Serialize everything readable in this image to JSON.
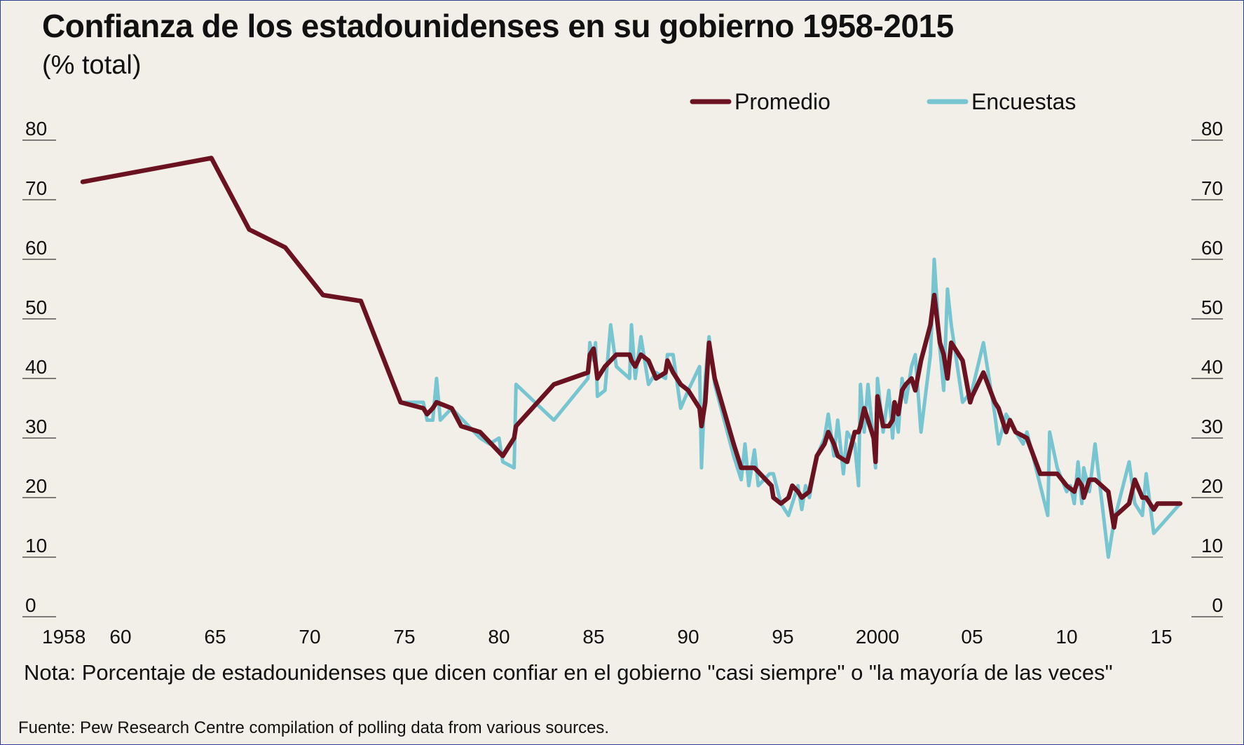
{
  "title": "Confianza de los estadounidenses en su gobierno 1958-2015",
  "subtitle": "(% total)",
  "note": "Nota: Porcentaje de estadounidenses que dicen confiar en el gobierno \"casi siempre\" o \"la mayoría de las veces\"",
  "source": "Fuente: Pew Research Centre compilation of polling data from various sources.",
  "chart_data": {
    "type": "line",
    "title": "Confianza de los estadounidenses en su gobierno 1958-2015",
    "subtitle": "(% total)",
    "ylim": [
      0,
      80
    ],
    "yticks": [
      "0",
      "10",
      "20",
      "30",
      "40",
      "50",
      "60",
      "70",
      "80"
    ],
    "xlim": [
      1958,
      2016
    ],
    "xticks": [
      {
        "x": 1958,
        "label": "1958"
      },
      {
        "x": 1960,
        "label": "60"
      },
      {
        "x": 1965,
        "label": "65"
      },
      {
        "x": 1970,
        "label": "70"
      },
      {
        "x": 1975,
        "label": "75"
      },
      {
        "x": 1980,
        "label": "80"
      },
      {
        "x": 1985,
        "label": "85"
      },
      {
        "x": 1990,
        "label": "90"
      },
      {
        "x": 1995,
        "label": "95"
      },
      {
        "x": 2000,
        "label": "2000"
      },
      {
        "x": 2005,
        "label": "05"
      },
      {
        "x": 2010,
        "label": "10"
      },
      {
        "x": 2015,
        "label": "15"
      }
    ],
    "grid": false,
    "legend_position": "top-right",
    "colors": {
      "Promedio": "#6b1220",
      "Encuestas": "#76c5d0"
    },
    "series": [
      {
        "name": "Encuestas",
        "color": "#76c5d0",
        "points": [
          [
            1958.0,
            73
          ],
          [
            1964.8,
            77
          ],
          [
            1966.8,
            65
          ],
          [
            1968.7,
            62
          ],
          [
            1970.7,
            54
          ],
          [
            1972.7,
            53
          ],
          [
            1974.8,
            36
          ],
          [
            1976.0,
            36
          ],
          [
            1976.2,
            33
          ],
          [
            1976.5,
            33
          ],
          [
            1976.7,
            40
          ],
          [
            1976.9,
            33
          ],
          [
            1977.5,
            35
          ],
          [
            1979.0,
            30
          ],
          [
            1979.5,
            29
          ],
          [
            1980.0,
            30
          ],
          [
            1980.2,
            26
          ],
          [
            1980.8,
            25
          ],
          [
            1980.9,
            39
          ],
          [
            1982.9,
            33
          ],
          [
            1984.7,
            40
          ],
          [
            1984.8,
            46
          ],
          [
            1985.0,
            43
          ],
          [
            1985.1,
            46
          ],
          [
            1985.2,
            37
          ],
          [
            1985.6,
            38
          ],
          [
            1985.9,
            49
          ],
          [
            1986.2,
            42
          ],
          [
            1986.9,
            40
          ],
          [
            1987.0,
            49
          ],
          [
            1987.2,
            40
          ],
          [
            1987.5,
            47
          ],
          [
            1987.9,
            39
          ],
          [
            1988.3,
            41
          ],
          [
            1988.8,
            40
          ],
          [
            1988.9,
            44
          ],
          [
            1989.2,
            44
          ],
          [
            1989.6,
            35
          ],
          [
            1990.0,
            38
          ],
          [
            1990.6,
            42
          ],
          [
            1990.7,
            25
          ],
          [
            1990.9,
            40
          ],
          [
            1991.1,
            47
          ],
          [
            1991.4,
            39
          ],
          [
            1992.4,
            27
          ],
          [
            1992.8,
            23
          ],
          [
            1993.0,
            29
          ],
          [
            1993.2,
            22
          ],
          [
            1993.5,
            28
          ],
          [
            1993.7,
            22
          ],
          [
            1994.0,
            23
          ],
          [
            1994.3,
            24
          ],
          [
            1994.5,
            24
          ],
          [
            1994.9,
            19
          ],
          [
            1995.3,
            17
          ],
          [
            1995.8,
            22
          ],
          [
            1996.0,
            18
          ],
          [
            1996.2,
            22
          ],
          [
            1996.4,
            20
          ],
          [
            1996.8,
            27
          ],
          [
            1997.2,
            30
          ],
          [
            1997.4,
            34
          ],
          [
            1997.7,
            27
          ],
          [
            1997.9,
            33
          ],
          [
            1998.2,
            24
          ],
          [
            1998.4,
            31
          ],
          [
            1998.8,
            29
          ],
          [
            1999.0,
            22
          ],
          [
            1999.1,
            39
          ],
          [
            1999.3,
            31
          ],
          [
            1999.5,
            39
          ],
          [
            1999.8,
            29
          ],
          [
            1999.9,
            25
          ],
          [
            2000.0,
            40
          ],
          [
            2000.3,
            31
          ],
          [
            2000.6,
            38
          ],
          [
            2000.8,
            30
          ],
          [
            2000.9,
            35
          ],
          [
            2001.1,
            31
          ],
          [
            2001.3,
            40
          ],
          [
            2001.5,
            36
          ],
          [
            2001.8,
            42
          ],
          [
            2002.0,
            44
          ],
          [
            2002.3,
            31
          ],
          [
            2002.8,
            44
          ],
          [
            2003.0,
            60
          ],
          [
            2003.3,
            45
          ],
          [
            2003.5,
            38
          ],
          [
            2003.7,
            55
          ],
          [
            2003.9,
            49
          ],
          [
            2004.5,
            36
          ],
          [
            2005.0,
            38
          ],
          [
            2005.6,
            46
          ],
          [
            2006.2,
            34
          ],
          [
            2006.4,
            29
          ],
          [
            2006.8,
            34
          ],
          [
            2007.3,
            31
          ],
          [
            2007.7,
            29
          ],
          [
            2007.9,
            31
          ],
          [
            2009.0,
            17
          ],
          [
            2009.1,
            31
          ],
          [
            2009.5,
            25
          ],
          [
            2010.0,
            21
          ],
          [
            2010.2,
            22
          ],
          [
            2010.4,
            19
          ],
          [
            2010.6,
            26
          ],
          [
            2010.8,
            19
          ],
          [
            2010.9,
            25
          ],
          [
            2011.2,
            21
          ],
          [
            2011.5,
            29
          ],
          [
            2012.2,
            10
          ],
          [
            2012.5,
            16
          ],
          [
            2013.3,
            26
          ],
          [
            2013.6,
            19
          ],
          [
            2014.0,
            17
          ],
          [
            2014.2,
            24
          ],
          [
            2014.6,
            14
          ],
          [
            2016.0,
            19
          ]
        ]
      },
      {
        "name": "Promedio",
        "color": "#6b1220",
        "points": [
          [
            1958.0,
            73
          ],
          [
            1964.8,
            77
          ],
          [
            1966.8,
            65
          ],
          [
            1968.7,
            62
          ],
          [
            1970.7,
            54
          ],
          [
            1972.7,
            53
          ],
          [
            1974.8,
            36
          ],
          [
            1976.0,
            35
          ],
          [
            1976.2,
            34
          ],
          [
            1976.5,
            35
          ],
          [
            1976.7,
            36
          ],
          [
            1977.5,
            35
          ],
          [
            1978.0,
            32
          ],
          [
            1979.0,
            31
          ],
          [
            1980.2,
            27
          ],
          [
            1980.8,
            30
          ],
          [
            1980.9,
            32
          ],
          [
            1982.9,
            39
          ],
          [
            1984.7,
            41
          ],
          [
            1984.8,
            44
          ],
          [
            1985.0,
            45
          ],
          [
            1985.2,
            40
          ],
          [
            1985.6,
            42
          ],
          [
            1986.2,
            44
          ],
          [
            1986.9,
            44
          ],
          [
            1987.0,
            43
          ],
          [
            1987.2,
            42
          ],
          [
            1987.5,
            44
          ],
          [
            1987.9,
            43
          ],
          [
            1988.3,
            40
          ],
          [
            1988.8,
            41
          ],
          [
            1988.9,
            43
          ],
          [
            1989.2,
            41
          ],
          [
            1989.6,
            39
          ],
          [
            1990.0,
            38
          ],
          [
            1990.6,
            35
          ],
          [
            1990.7,
            32
          ],
          [
            1990.9,
            36
          ],
          [
            1991.1,
            46
          ],
          [
            1991.4,
            40
          ],
          [
            1992.4,
            29
          ],
          [
            1992.8,
            25
          ],
          [
            1993.5,
            25
          ],
          [
            1994.4,
            22
          ],
          [
            1994.5,
            20
          ],
          [
            1994.9,
            19
          ],
          [
            1995.3,
            20
          ],
          [
            1995.5,
            22
          ],
          [
            1995.8,
            21
          ],
          [
            1996.0,
            20
          ],
          [
            1996.4,
            21
          ],
          [
            1996.8,
            27
          ],
          [
            1997.2,
            29
          ],
          [
            1997.4,
            31
          ],
          [
            1997.7,
            29
          ],
          [
            1997.9,
            27
          ],
          [
            1998.4,
            26
          ],
          [
            1998.8,
            31
          ],
          [
            1999.0,
            31
          ],
          [
            1999.1,
            32
          ],
          [
            1999.3,
            35
          ],
          [
            1999.5,
            33
          ],
          [
            1999.8,
            30
          ],
          [
            1999.9,
            26
          ],
          [
            2000.0,
            37
          ],
          [
            2000.3,
            32
          ],
          [
            2000.6,
            32
          ],
          [
            2000.8,
            33
          ],
          [
            2000.9,
            36
          ],
          [
            2001.1,
            34
          ],
          [
            2001.3,
            38
          ],
          [
            2001.5,
            39
          ],
          [
            2001.8,
            40
          ],
          [
            2002.0,
            38
          ],
          [
            2002.3,
            43
          ],
          [
            2002.8,
            49
          ],
          [
            2003.0,
            54
          ],
          [
            2003.3,
            46
          ],
          [
            2003.5,
            44
          ],
          [
            2003.7,
            40
          ],
          [
            2003.9,
            46
          ],
          [
            2004.5,
            43
          ],
          [
            2004.9,
            36
          ],
          [
            2005.0,
            37
          ],
          [
            2005.6,
            41
          ],
          [
            2006.2,
            36
          ],
          [
            2006.4,
            35
          ],
          [
            2006.8,
            31
          ],
          [
            2007.0,
            33
          ],
          [
            2007.3,
            31
          ],
          [
            2007.9,
            30
          ],
          [
            2008.6,
            24
          ],
          [
            2009.0,
            24
          ],
          [
            2009.5,
            24
          ],
          [
            2010.0,
            22
          ],
          [
            2010.4,
            21
          ],
          [
            2010.6,
            23
          ],
          [
            2010.8,
            22
          ],
          [
            2010.9,
            20
          ],
          [
            2011.2,
            23
          ],
          [
            2011.5,
            23
          ],
          [
            2012.2,
            21
          ],
          [
            2012.5,
            15
          ],
          [
            2012.6,
            17
          ],
          [
            2013.3,
            19
          ],
          [
            2013.6,
            23
          ],
          [
            2014.0,
            20
          ],
          [
            2014.2,
            20
          ],
          [
            2014.4,
            19
          ],
          [
            2014.6,
            18
          ],
          [
            2014.8,
            19
          ],
          [
            2016.0,
            19
          ]
        ]
      }
    ]
  }
}
